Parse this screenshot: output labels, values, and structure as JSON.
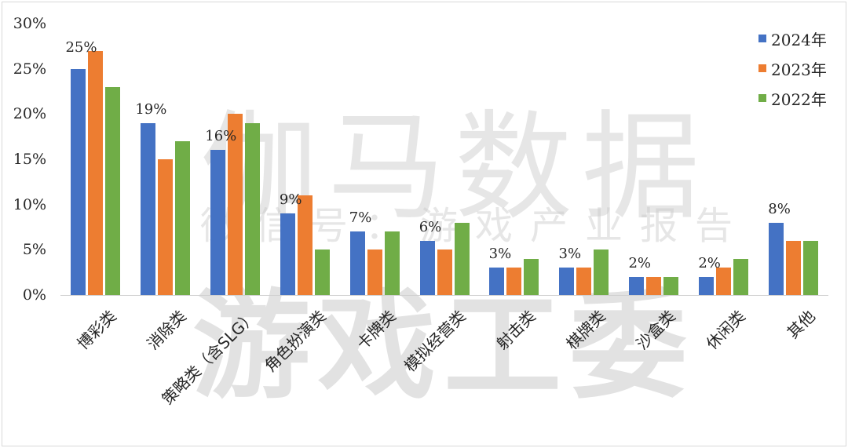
{
  "chart_data": {
    "type": "bar",
    "title": "",
    "xlabel": "",
    "ylabel": "",
    "ylim": [
      0,
      30
    ],
    "yticks": [
      "0%",
      "5%",
      "10%",
      "15%",
      "20%",
      "25%",
      "30%"
    ],
    "grid": false,
    "legend_position": "top-right",
    "categories": [
      "博彩类",
      "消除类",
      "策略类（含SLG）",
      "角色扮演类",
      "卡牌类",
      "模拟经营类",
      "射击类",
      "棋牌类",
      "沙盒类",
      "休闲类",
      "其他"
    ],
    "series": [
      {
        "name": "2024年",
        "color": "#4472C4",
        "values": [
          25,
          19,
          16,
          9,
          7,
          6,
          3,
          3,
          2,
          2,
          8
        ]
      },
      {
        "name": "2023年",
        "color": "#ED7D31",
        "values": [
          27,
          15,
          20,
          11,
          5,
          5,
          3,
          3,
          2,
          3,
          6
        ]
      },
      {
        "name": "2022年",
        "color": "#70AD47",
        "values": [
          23,
          17,
          19,
          5,
          7,
          8,
          4,
          5,
          2,
          4,
          6
        ]
      }
    ],
    "data_labels": [
      "25%",
      "19%",
      "16%",
      "9%",
      "7%",
      "6%",
      "3%",
      "3%",
      "2%",
      "2%",
      "8%"
    ],
    "data_labels_series": "2024年"
  },
  "watermark": {
    "line1": "伽马数据",
    "line2": "微信号：游戏产业报告",
    "line3": "游戏工委"
  }
}
